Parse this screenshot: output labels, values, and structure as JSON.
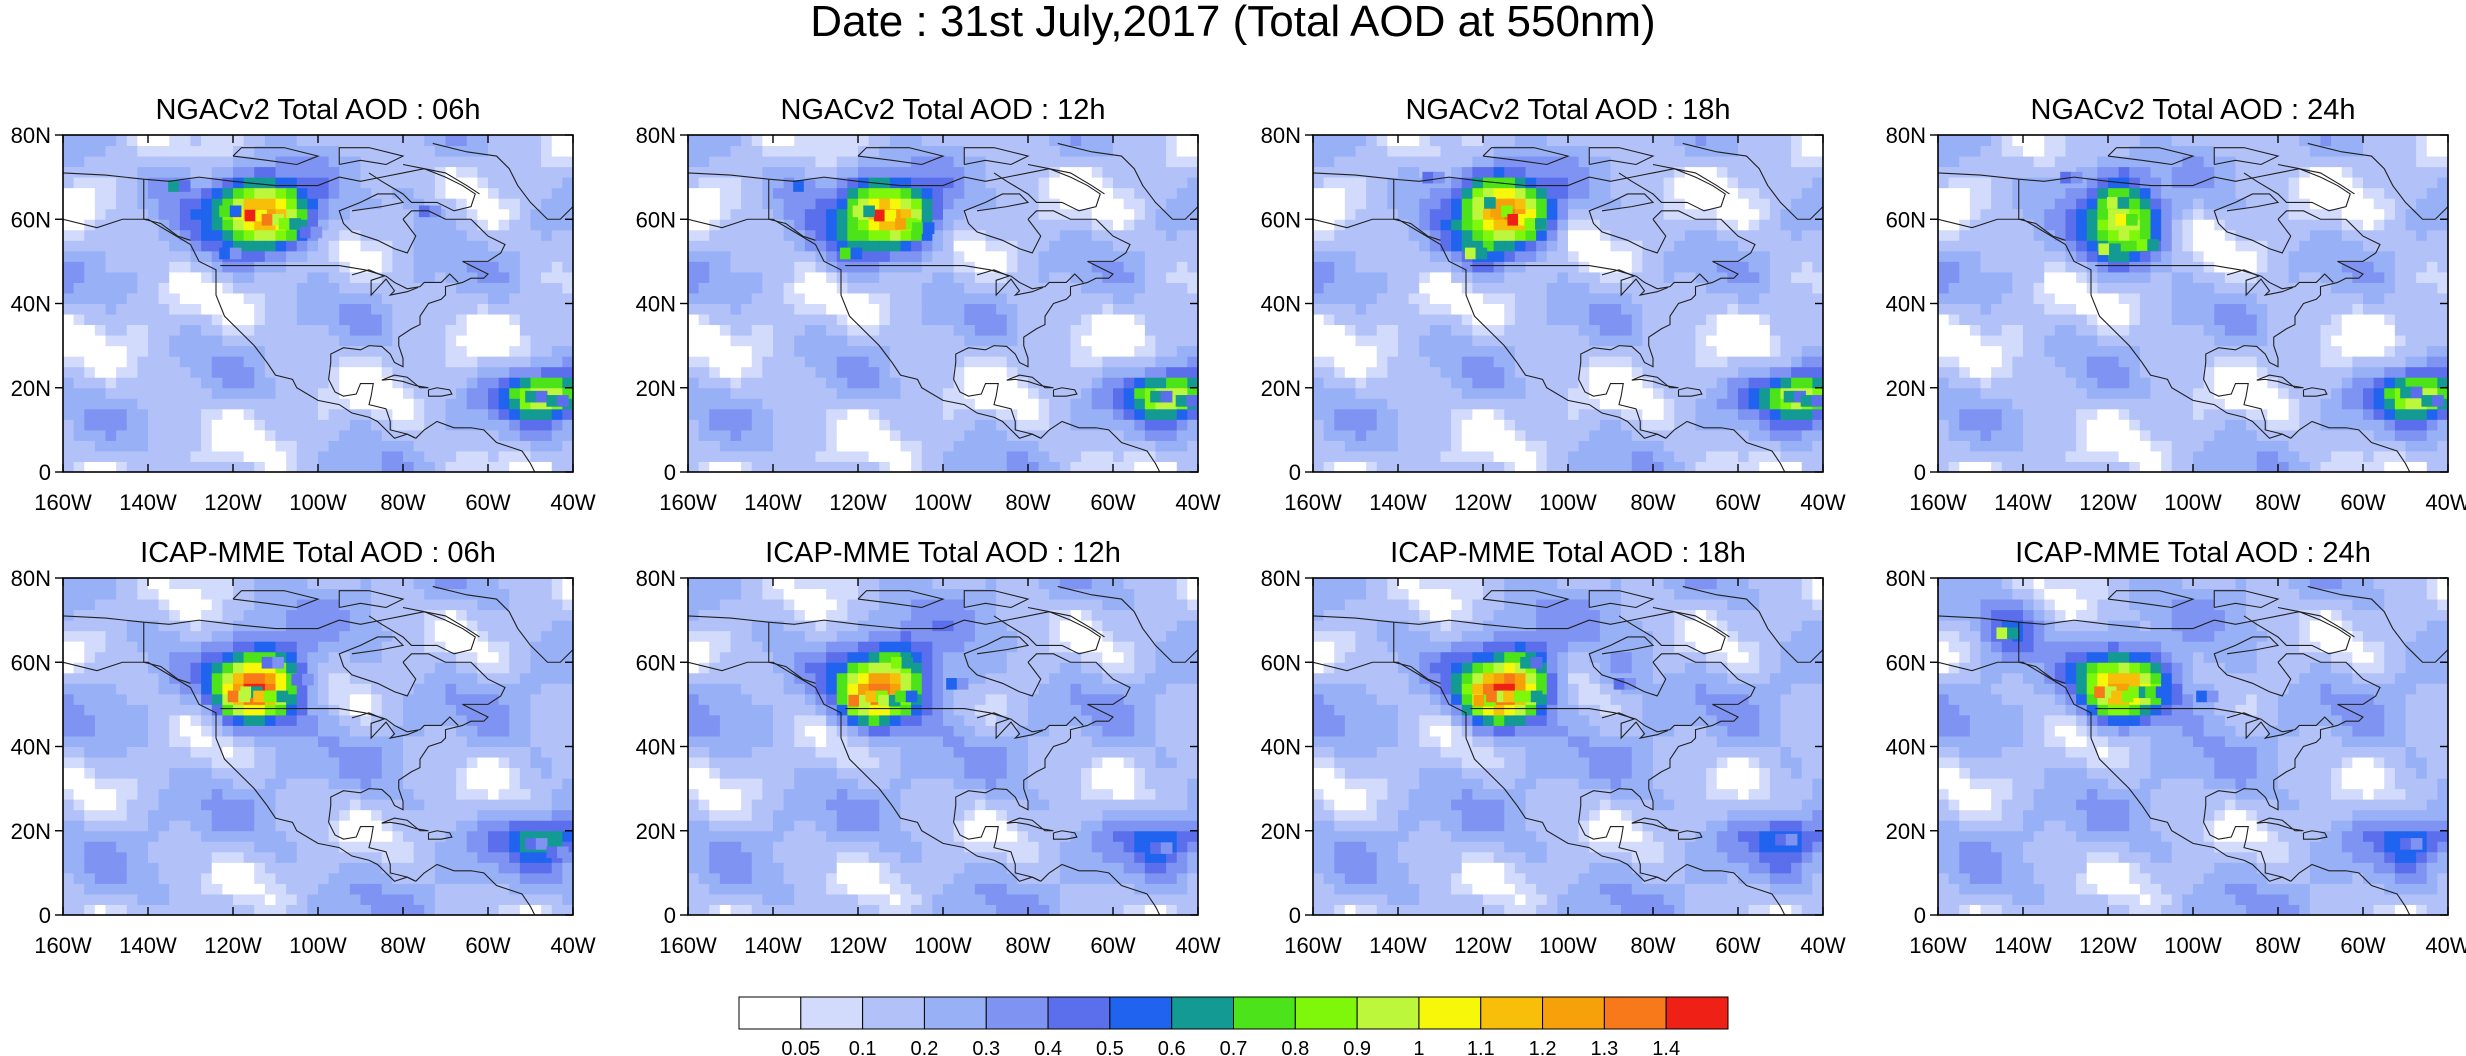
{
  "figure": {
    "title": "Date : 31st July,2017 (Total AOD at 550nm)"
  },
  "axes": {
    "lat_ticks": [
      "80N",
      "60N",
      "40N",
      "20N",
      "0"
    ],
    "lon_ticks": [
      "160W",
      "140W",
      "120W",
      "100W",
      "80W",
      "60W",
      "40W"
    ],
    "lon_range": [
      -160,
      -40
    ],
    "lat_range": [
      0,
      80
    ]
  },
  "panels": [
    {
      "title": "NGACv2 Total AOD : 06h",
      "model": "NGACv2",
      "forecast_hour": "06h",
      "plumes": [
        {
          "lon": -116,
          "lat": 61,
          "value": 1.4
        },
        {
          "lon": -112,
          "lat": 60,
          "value": 1.3
        },
        {
          "lon": -108,
          "lat": 59,
          "value": 0.8
        },
        {
          "lon": -122,
          "lat": 62,
          "value": 0.7
        },
        {
          "lon": -134,
          "lat": 68,
          "value": 0.6
        },
        {
          "lon": -103,
          "lat": 57,
          "value": 0.4
        },
        {
          "lon": -122,
          "lat": 52,
          "value": 0.5
        },
        {
          "lon": -50,
          "lat": 18,
          "value": 0.6
        },
        {
          "lon": -45,
          "lat": 17,
          "value": 0.6
        },
        {
          "lon": -75,
          "lat": 62,
          "value": 0.4
        }
      ]
    },
    {
      "title": "NGACv2 Total AOD : 12h",
      "model": "NGACv2",
      "forecast_hour": "12h",
      "plumes": [
        {
          "lon": -115,
          "lat": 61,
          "value": 1.4
        },
        {
          "lon": -110,
          "lat": 59,
          "value": 1.2
        },
        {
          "lon": -120,
          "lat": 62,
          "value": 0.9
        },
        {
          "lon": -106,
          "lat": 58,
          "value": 0.7
        },
        {
          "lon": -123,
          "lat": 52,
          "value": 0.7
        },
        {
          "lon": -134,
          "lat": 68,
          "value": 0.5
        },
        {
          "lon": -50,
          "lat": 18,
          "value": 0.6
        },
        {
          "lon": -44,
          "lat": 17,
          "value": 0.6
        }
      ]
    },
    {
      "title": "NGACv2 Total AOD : 18h",
      "model": "NGACv2",
      "forecast_hour": "18h",
      "plumes": [
        {
          "lon": -117,
          "lat": 62,
          "value": 1.2
        },
        {
          "lon": -113,
          "lat": 60,
          "value": 1.4
        },
        {
          "lon": -121,
          "lat": 64,
          "value": 0.9
        },
        {
          "lon": -109,
          "lat": 59,
          "value": 0.8
        },
        {
          "lon": -123,
          "lat": 52,
          "value": 0.9
        },
        {
          "lon": -48,
          "lat": 18,
          "value": 0.6
        },
        {
          "lon": -44,
          "lat": 17,
          "value": 0.6
        },
        {
          "lon": -133,
          "lat": 70,
          "value": 0.4
        }
      ]
    },
    {
      "title": "NGACv2 Total AOD : 24h",
      "model": "NGACv2",
      "forecast_hour": "24h",
      "plumes": [
        {
          "lon": -119,
          "lat": 64,
          "value": 0.9
        },
        {
          "lon": -117,
          "lat": 60,
          "value": 1.0
        },
        {
          "lon": -121,
          "lat": 53,
          "value": 0.9
        },
        {
          "lon": -112,
          "lat": 54,
          "value": 0.8
        },
        {
          "lon": -50,
          "lat": 19,
          "value": 0.6
        },
        {
          "lon": -45,
          "lat": 17,
          "value": 0.6
        },
        {
          "lon": -130,
          "lat": 70,
          "value": 0.4
        }
      ]
    },
    {
      "title": "ICAP-MME Total AOD : 06h",
      "model": "ICAP-MME",
      "forecast_hour": "06h",
      "plumes": [
        {
          "lon": -120,
          "lat": 52,
          "value": 1.3
        },
        {
          "lon": -117,
          "lat": 53,
          "value": 0.9
        },
        {
          "lon": -114,
          "lat": 52,
          "value": 1.1
        },
        {
          "lon": -111,
          "lat": 52,
          "value": 0.8
        },
        {
          "lon": -105,
          "lat": 56,
          "value": 0.4
        },
        {
          "lon": -112,
          "lat": 60,
          "value": 0.4
        },
        {
          "lon": -50,
          "lat": 17,
          "value": 0.4
        },
        {
          "lon": -45,
          "lat": 15,
          "value": 0.4
        }
      ]
    },
    {
      "title": "ICAP-MME Total AOD : 12h",
      "model": "ICAP-MME",
      "forecast_hour": "12h",
      "plumes": [
        {
          "lon": -121,
          "lat": 51,
          "value": 1.3
        },
        {
          "lon": -117,
          "lat": 52,
          "value": 1.1
        },
        {
          "lon": -114,
          "lat": 51,
          "value": 0.9
        },
        {
          "lon": -111,
          "lat": 60,
          "value": 0.8
        },
        {
          "lon": -98,
          "lat": 55,
          "value": 0.5
        },
        {
          "lon": -110,
          "lat": 52,
          "value": 0.7
        },
        {
          "lon": -50,
          "lat": 16,
          "value": 0.4
        }
      ]
    },
    {
      "title": "ICAP-MME Total AOD : 18h",
      "model": "ICAP-MME",
      "forecast_hour": "18h",
      "plumes": [
        {
          "lon": -121,
          "lat": 51,
          "value": 1.2
        },
        {
          "lon": -118,
          "lat": 52,
          "value": 1.3
        },
        {
          "lon": -114,
          "lat": 52,
          "value": 1.1
        },
        {
          "lon": -110,
          "lat": 52,
          "value": 0.8
        },
        {
          "lon": -110,
          "lat": 60,
          "value": 0.6
        },
        {
          "lon": -88,
          "lat": 55,
          "value": 0.4
        },
        {
          "lon": -50,
          "lat": 18,
          "value": 0.4
        }
      ]
    },
    {
      "title": "ICAP-MME Total AOD : 24h",
      "model": "ICAP-MME",
      "forecast_hour": "24h",
      "plumes": [
        {
          "lon": -122,
          "lat": 53,
          "value": 1.3
        },
        {
          "lon": -118,
          "lat": 52,
          "value": 1.1
        },
        {
          "lon": -114,
          "lat": 53,
          "value": 0.8
        },
        {
          "lon": -110,
          "lat": 53,
          "value": 0.7
        },
        {
          "lon": -145,
          "lat": 67,
          "value": 0.9
        },
        {
          "lon": -98,
          "lat": 52,
          "value": 0.5
        },
        {
          "lon": -50,
          "lat": 17,
          "value": 0.4
        }
      ]
    }
  ],
  "colorbar": {
    "levels": [
      "0.05",
      "0.1",
      "0.2",
      "0.3",
      "0.4",
      "0.5",
      "0.6",
      "0.7",
      "0.8",
      "0.9",
      "1",
      "1.1",
      "1.2",
      "1.3",
      "1.4"
    ],
    "colors": [
      "#ffffff",
      "#d2dbfb",
      "#b2c2f8",
      "#98b0f6",
      "#7e93f2",
      "#5b6fec",
      "#1f63ef",
      "#139a92",
      "#4ce31a",
      "#7ff70a",
      "#bdf73b",
      "#f7f70a",
      "#f7bf0a",
      "#f7a10a",
      "#f7791a",
      "#ef2015"
    ]
  },
  "map_colors": {
    "background_field": "#c6d2f9",
    "coast": "#202020"
  }
}
